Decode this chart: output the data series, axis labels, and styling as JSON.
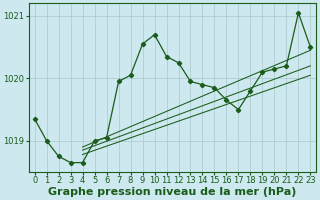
{
  "title": "Graphe pression niveau de la mer (hPa)",
  "bg_color": "#cde8ef",
  "line_color": "#1a5c1a",
  "grid_color": "#a8c8cc",
  "xlim": [
    -0.5,
    23.5
  ],
  "ylim": [
    1018.5,
    1021.2
  ],
  "yticks": [
    1019,
    1020,
    1021
  ],
  "xticks": [
    0,
    1,
    2,
    3,
    4,
    5,
    6,
    7,
    8,
    9,
    10,
    11,
    12,
    13,
    14,
    15,
    16,
    17,
    18,
    19,
    20,
    21,
    22,
    23
  ],
  "main_y": [
    1019.35,
    1019.0,
    1018.75,
    1018.65,
    1018.65,
    1019.0,
    1019.05,
    1019.95,
    1020.05,
    1020.55,
    1020.7,
    1020.35,
    1020.25,
    1019.95,
    1019.9,
    1019.85,
    1019.65,
    1019.5,
    1019.8,
    1020.1,
    1020.15,
    1020.2,
    1021.05,
    1020.5
  ],
  "trend_lines": [
    {
      "x1": 4,
      "y1": 1018.9,
      "x2": 23,
      "y2": 1020.45
    },
    {
      "x1": 4,
      "y1": 1018.85,
      "x2": 23,
      "y2": 1020.2
    },
    {
      "x1": 4,
      "y1": 1018.78,
      "x2": 23,
      "y2": 1020.05
    }
  ],
  "title_fontsize": 8,
  "tick_fontsize": 6
}
